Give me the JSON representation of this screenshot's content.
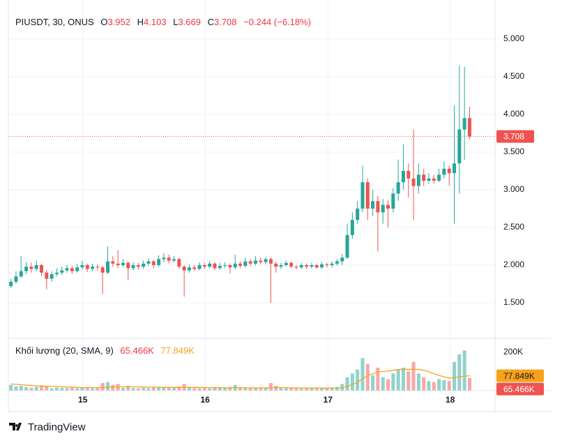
{
  "chart_data": {
    "type": "candlestick",
    "header": {
      "symbol": "PIUSDT, 30, ONUS",
      "o_label": "O",
      "open": 3.952,
      "h_label": "H",
      "high": 4.103,
      "l_label": "L",
      "low": 3.669,
      "c_label": "C",
      "close": 3.708,
      "change": "−0.244 (−6.18%)"
    },
    "volume_legend": {
      "label": "Khối lượng (20, SMA, 9)",
      "volume": "65.466K",
      "sma": "77.849K"
    },
    "up_color": "#26a69a",
    "down_color": "#ef5350",
    "sma_color": "#f7a21b",
    "xlim": [
      -0.5,
      95
    ],
    "xticks": [
      {
        "value": 14.1,
        "label": "15"
      },
      {
        "value": 38.1,
        "label": "16"
      },
      {
        "value": 62.2,
        "label": "17"
      },
      {
        "value": 86.2,
        "label": "18"
      }
    ],
    "ylim": [
      1.028,
      5.519
    ],
    "yticks": [
      {
        "value": 1.5,
        "label": "1.500"
      },
      {
        "value": 2,
        "label": "2.000"
      },
      {
        "value": 2.5,
        "label": "2.500"
      },
      {
        "value": 3,
        "label": "3.000"
      },
      {
        "value": 3.5,
        "label": "3.500"
      },
      {
        "value": 4,
        "label": "4.000"
      },
      {
        "value": 4.5,
        "label": "4.500"
      },
      {
        "value": 5,
        "label": "5.000"
      }
    ],
    "y2lim": [
      0,
      272700
    ],
    "y2ticks": [
      {
        "value": 200000,
        "label": "200K"
      }
    ],
    "grid": true,
    "open": [
      1.72,
      1.78,
      1.85,
      1.92,
      1.98,
      1.95,
      2.0,
      1.9,
      1.82,
      1.88,
      1.9,
      1.93,
      1.96,
      1.92,
      1.97,
      2.0,
      1.95,
      1.98,
      1.97,
      1.9,
      2.05,
      2.02,
      2.0,
      2.03,
      1.96,
      2.0,
      1.98,
      2.02,
      2.05,
      2.0,
      2.08,
      2.1,
      2.06,
      2.08,
      1.98,
      1.93,
      1.97,
      1.95,
      2.0,
      1.98,
      2.02,
      1.96,
      1.99,
      2.0,
      1.97,
      2.02,
      1.99,
      2.05,
      2.02,
      2.06,
      2.04,
      2.08,
      2.02,
      1.98,
      2.0,
      2.03,
      1.98,
      1.97,
      2.0,
      1.98,
      2.0,
      1.97,
      2.01,
      2.0,
      2.02,
      2.05,
      2.1,
      2.4,
      2.6,
      2.75,
      3.1,
      2.75,
      2.85,
      2.7,
      2.8,
      2.75,
      2.95,
      3.1,
      3.25,
      3.15,
      3.05,
      3.2,
      3.12,
      3.15,
      3.12,
      3.2,
      3.28,
      3.22,
      3.35,
      3.8,
      3.952
    ],
    "high": [
      1.82,
      1.92,
      2.12,
      2.04,
      2.03,
      2.06,
      2.02,
      1.93,
      1.92,
      1.96,
      1.98,
      2.0,
      1.99,
      2.02,
      2.06,
      2.02,
      2.02,
      2.01,
      1.99,
      2.25,
      2.12,
      2.2,
      2.08,
      2.05,
      2.04,
      2.03,
      2.06,
      2.09,
      2.07,
      2.13,
      2.16,
      2.14,
      2.12,
      2.1,
      2.0,
      2.01,
      2.0,
      2.04,
      2.03,
      2.06,
      2.04,
      2.03,
      2.04,
      2.02,
      2.14,
      2.05,
      2.1,
      2.08,
      2.12,
      2.1,
      2.11,
      2.1,
      2.04,
      2.03,
      2.06,
      2.05,
      2.0,
      2.03,
      2.02,
      2.03,
      2.02,
      2.04,
      2.03,
      2.05,
      2.08,
      2.15,
      2.55,
      2.7,
      2.85,
      3.32,
      3.15,
      3.0,
      2.92,
      2.88,
      2.86,
      3.02,
      3.4,
      3.6,
      3.35,
      3.8,
      3.35,
      3.28,
      3.22,
      3.2,
      3.28,
      3.38,
      3.32,
      4.12,
      4.65,
      4.63,
      4.103
    ],
    "low": [
      1.7,
      1.75,
      1.83,
      1.88,
      1.9,
      1.92,
      1.86,
      1.68,
      1.78,
      1.85,
      1.87,
      1.9,
      1.88,
      1.9,
      1.94,
      1.91,
      1.92,
      1.93,
      1.62,
      1.88,
      1.98,
      1.96,
      1.97,
      1.8,
      1.93,
      1.94,
      1.95,
      1.99,
      1.96,
      1.98,
      2.04,
      2.02,
      2.03,
      1.95,
      1.58,
      1.9,
      1.92,
      1.93,
      1.95,
      1.96,
      1.93,
      1.94,
      1.96,
      1.89,
      1.95,
      1.96,
      1.97,
      1.99,
      2.0,
      2.01,
      2.01,
      1.5,
      1.9,
      1.95,
      1.98,
      1.96,
      1.94,
      1.95,
      1.95,
      1.96,
      1.95,
      1.95,
      1.97,
      1.97,
      1.99,
      2.0,
      2.08,
      2.35,
      2.55,
      2.7,
      2.6,
      2.65,
      2.18,
      2.55,
      2.5,
      2.7,
      2.85,
      3.0,
      2.9,
      2.6,
      2.95,
      3.05,
      3.08,
      3.08,
      3.1,
      3.15,
      3.05,
      2.55,
      2.95,
      3.4,
      3.669
    ],
    "close": [
      1.78,
      1.85,
      1.92,
      1.98,
      1.95,
      2.0,
      1.9,
      1.82,
      1.88,
      1.9,
      1.93,
      1.96,
      1.92,
      1.97,
      2.0,
      1.95,
      1.98,
      1.97,
      1.9,
      2.05,
      2.02,
      2.0,
      2.03,
      1.96,
      2.0,
      1.98,
      2.02,
      2.05,
      2.0,
      2.08,
      2.1,
      2.06,
      2.08,
      1.98,
      1.93,
      1.97,
      1.95,
      2.0,
      1.98,
      2.02,
      1.96,
      1.99,
      2.0,
      1.97,
      2.02,
      1.99,
      2.05,
      2.02,
      2.06,
      2.04,
      2.08,
      2.02,
      1.98,
      2.0,
      2.03,
      1.98,
      1.97,
      2.0,
      1.98,
      2.0,
      1.97,
      2.01,
      2.0,
      2.02,
      2.05,
      2.1,
      2.4,
      2.6,
      2.75,
      3.1,
      2.75,
      2.85,
      2.7,
      2.8,
      2.75,
      2.95,
      3.1,
      3.25,
      3.15,
      3.05,
      3.2,
      3.12,
      3.15,
      3.12,
      3.2,
      3.28,
      3.22,
      3.35,
      3.8,
      3.952,
      3.708
    ],
    "volume": [
      30000,
      22000,
      25000,
      18000,
      15000,
      20000,
      28000,
      25000,
      12000,
      15000,
      14000,
      13000,
      16000,
      12000,
      15000,
      14000,
      12000,
      13000,
      40000,
      45000,
      30000,
      35000,
      15000,
      25000,
      14000,
      12000,
      15000,
      13000,
      16000,
      20000,
      18000,
      15000,
      14000,
      22000,
      35000,
      18000,
      13000,
      12000,
      14000,
      12000,
      15000,
      13000,
      14000,
      20000,
      30000,
      14000,
      16000,
      13000,
      15000,
      14000,
      16000,
      40000,
      25000,
      14000,
      12000,
      13000,
      12000,
      11000,
      12000,
      13000,
      12000,
      14000,
      13000,
      15000,
      20000,
      35000,
      70000,
      90000,
      110000,
      170000,
      140000,
      80000,
      120000,
      70000,
      60000,
      90000,
      110000,
      120000,
      100000,
      150000,
      90000,
      70000,
      50000,
      45000,
      60000,
      55000,
      50000,
      150000,
      190000,
      210000,
      65466
    ],
    "volume_sma": [
      35000,
      33000,
      31000,
      29000,
      27000,
      25000,
      24000,
      23000,
      22000,
      21000,
      20000,
      19000,
      18000,
      17000,
      16500,
      16000,
      16000,
      16000,
      17000,
      18000,
      19000,
      20000,
      20000,
      20000,
      20000,
      19500,
      19000,
      18500,
      18000,
      18000,
      17500,
      17000,
      17000,
      17000,
      17500,
      17500,
      17000,
      17000,
      16500,
      16000,
      16000,
      15500,
      15000,
      15000,
      15500,
      15500,
      15000,
      15000,
      14500,
      14500,
      14500,
      16000,
      16500,
      16000,
      15500,
      15000,
      15000,
      14500,
      14000,
      14000,
      14000,
      13500,
      13500,
      13500,
      14000,
      16000,
      22000,
      32000,
      44000,
      62000,
      78000,
      88000,
      98000,
      100000,
      102000,
      106000,
      110000,
      112000,
      110000,
      112000,
      110000,
      106000,
      98000,
      88000,
      80000,
      72000,
      66000,
      68000,
      72000,
      76000,
      77849
    ]
  },
  "footer": {
    "brand": "TradingView"
  }
}
